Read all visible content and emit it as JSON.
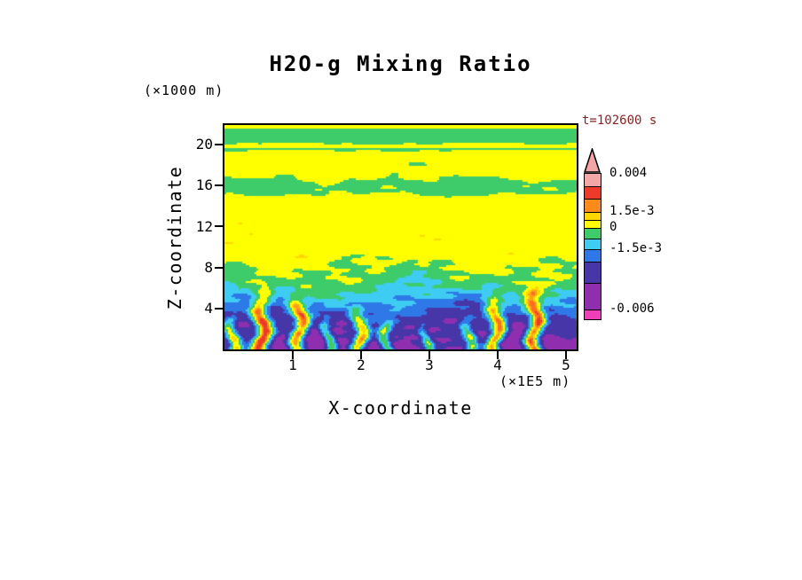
{
  "chart_data": {
    "type": "heatmap",
    "title": "H2O-g Mixing Ratio",
    "xlabel": "X-coordinate",
    "ylabel": "Z-coordinate",
    "x_unit": "(×1E5 m)",
    "y_unit": "(×1000 m)",
    "timestamp": "t=102600 s",
    "timestamp_color": "#8B2222",
    "x_ticks": [
      "1",
      "2",
      "3",
      "4",
      "5"
    ],
    "y_ticks": [
      "20",
      "16",
      "12",
      "8",
      "4"
    ],
    "x_range": [
      0,
      5.16
    ],
    "y_range": [
      0,
      21.9
    ],
    "levels": [
      -0.006,
      -0.004,
      -0.0025,
      -0.0015,
      -0.0005,
      0.0005,
      0.0015,
      0.002,
      0.0025,
      0.003,
      0.004
    ],
    "colors": [
      "#EE3FB8",
      "#8F2FB0",
      "#4636A8",
      "#2E78E8",
      "#3FCCF2",
      "#3ECC6B",
      "#FFFF00",
      "#FFD700",
      "#FF9E1A",
      "#FF6E1E",
      "#EE3A28",
      "#F2A6A6"
    ],
    "colorbar": {
      "labels": [
        "0.004",
        "1.5e-3",
        "0",
        "-1.5e-3",
        "-0.006"
      ],
      "arrow_color": "#F2A6A6",
      "segments": [
        [
          "#F2A6A6",
          14
        ],
        [
          "#EE3A28",
          14
        ],
        [
          "#FF8C1A",
          15
        ],
        [
          "#FFD700",
          9
        ],
        [
          "#FFFF00",
          9
        ],
        [
          "#3ECC6B",
          12
        ],
        [
          "#3FCCF2",
          12
        ],
        [
          "#2E78E8",
          14
        ],
        [
          "#4636A8",
          24
        ],
        [
          "#8F2FB0",
          30
        ],
        [
          "#EE3FB8",
          11
        ]
      ]
    },
    "field_model": {
      "base": [
        [
          0,
          -0.0047
        ],
        [
          2,
          -0.004
        ],
        [
          3,
          -0.0032
        ],
        [
          4,
          -0.0022
        ],
        [
          5,
          -0.0013
        ],
        [
          6,
          -0.0004
        ],
        [
          7,
          0.0001
        ],
        [
          8.4,
          0.0007
        ],
        [
          10,
          0.0011
        ],
        [
          14.8,
          0.001
        ],
        [
          15.3,
          0.0003
        ],
        [
          16.2,
          0.0002
        ],
        [
          17.2,
          0.0009
        ],
        [
          19.3,
          0.0009
        ],
        [
          19.35,
          0.0008
        ],
        [
          19.5,
          -0.0001
        ],
        [
          19.65,
          0.0008
        ],
        [
          20.0,
          0.0008
        ],
        [
          20.3,
          -0.0002
        ],
        [
          21.4,
          -0.0001
        ],
        [
          21.6,
          0.0011
        ],
        [
          22,
          0.0011
        ]
      ],
      "amp": [
        [
          0,
          0.0014
        ],
        [
          3,
          0.0014
        ],
        [
          5,
          0.0013
        ],
        [
          7,
          0.0012
        ],
        [
          8.5,
          0.0009
        ],
        [
          10,
          0.0005
        ],
        [
          14,
          0.00045
        ],
        [
          15,
          0.0006
        ],
        [
          16.5,
          0.0005
        ],
        [
          17.5,
          0.0006
        ],
        [
          18.5,
          0.0005
        ],
        [
          19,
          0.0003
        ],
        [
          20,
          0.00025
        ],
        [
          22,
          0.0002
        ]
      ],
      "noise": [
        [
          2.1,
          0.55,
          1.3,
          0.35
        ],
        [
          4.3,
          -1.1,
          0.7,
          0.28
        ],
        [
          7.9,
          2.3,
          3.1,
          0.2
        ],
        [
          12.7,
          -4.1,
          5.0,
          0.12
        ],
        [
          3.3,
          6.7,
          0.2,
          0.18
        ]
      ],
      "plumes": [
        [
          0.12,
          0.1,
          0.0055,
          3.0
        ],
        [
          0.55,
          0.13,
          0.0075,
          5.2
        ],
        [
          1.1,
          0.12,
          0.0072,
          4.8
        ],
        [
          1.52,
          0.09,
          0.0052,
          2.8
        ],
        [
          1.98,
          0.11,
          0.0062,
          3.6
        ],
        [
          2.38,
          0.09,
          0.005,
          2.6
        ],
        [
          2.95,
          0.08,
          0.0042,
          2.2
        ],
        [
          3.58,
          0.1,
          0.0048,
          2.8
        ],
        [
          3.98,
          0.12,
          0.0072,
          4.6
        ],
        [
          4.55,
          0.12,
          0.0074,
          5.2
        ]
      ]
    }
  }
}
